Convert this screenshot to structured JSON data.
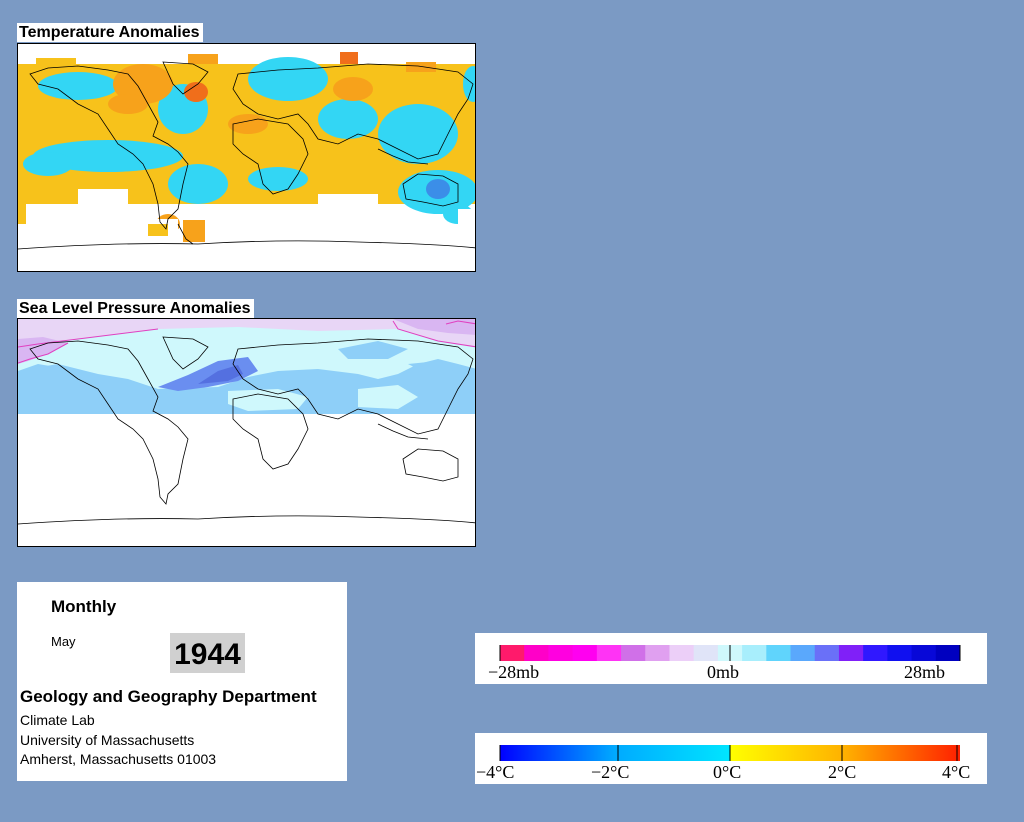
{
  "temperature_panel": {
    "title": "Temperature Anomalies"
  },
  "pressure_panel": {
    "title": "Sea Level Pressure Anomalies"
  },
  "info": {
    "period": "Monthly",
    "month": "May",
    "year": "1944",
    "department": "Geology and Geography Department",
    "lab": "Climate Lab",
    "university": "University of Massachusetts",
    "address": "Amherst, Massachusetts 01003"
  },
  "pressure_legend": {
    "labels": [
      "−28mb",
      "0mb",
      "28mb"
    ],
    "colors": [
      "#ff1a6b",
      "#ff00c8",
      "#ff00e0",
      "#ff00f0",
      "#ff33f5",
      "#d070e8",
      "#e0a0f0",
      "#eccff8",
      "#e0e4f8",
      "#cff8fc",
      "#a8eefc",
      "#60d4fc",
      "#5aa8fc",
      "#6a70f8",
      "#8020f8",
      "#3018ff",
      "#1010f0",
      "#0808d8",
      "#0000c0"
    ]
  },
  "temperature_legend": {
    "labels": [
      "−4°C",
      "−2°C",
      "0°C",
      "2°C",
      "4°C"
    ],
    "colors": {
      "cold_extreme": "#0000ff",
      "cold": "#00aaff",
      "cool": "#00e5ff",
      "neutral_warm": "#ffff00",
      "warm": "#ffb000",
      "hot": "#ff4000"
    }
  }
}
